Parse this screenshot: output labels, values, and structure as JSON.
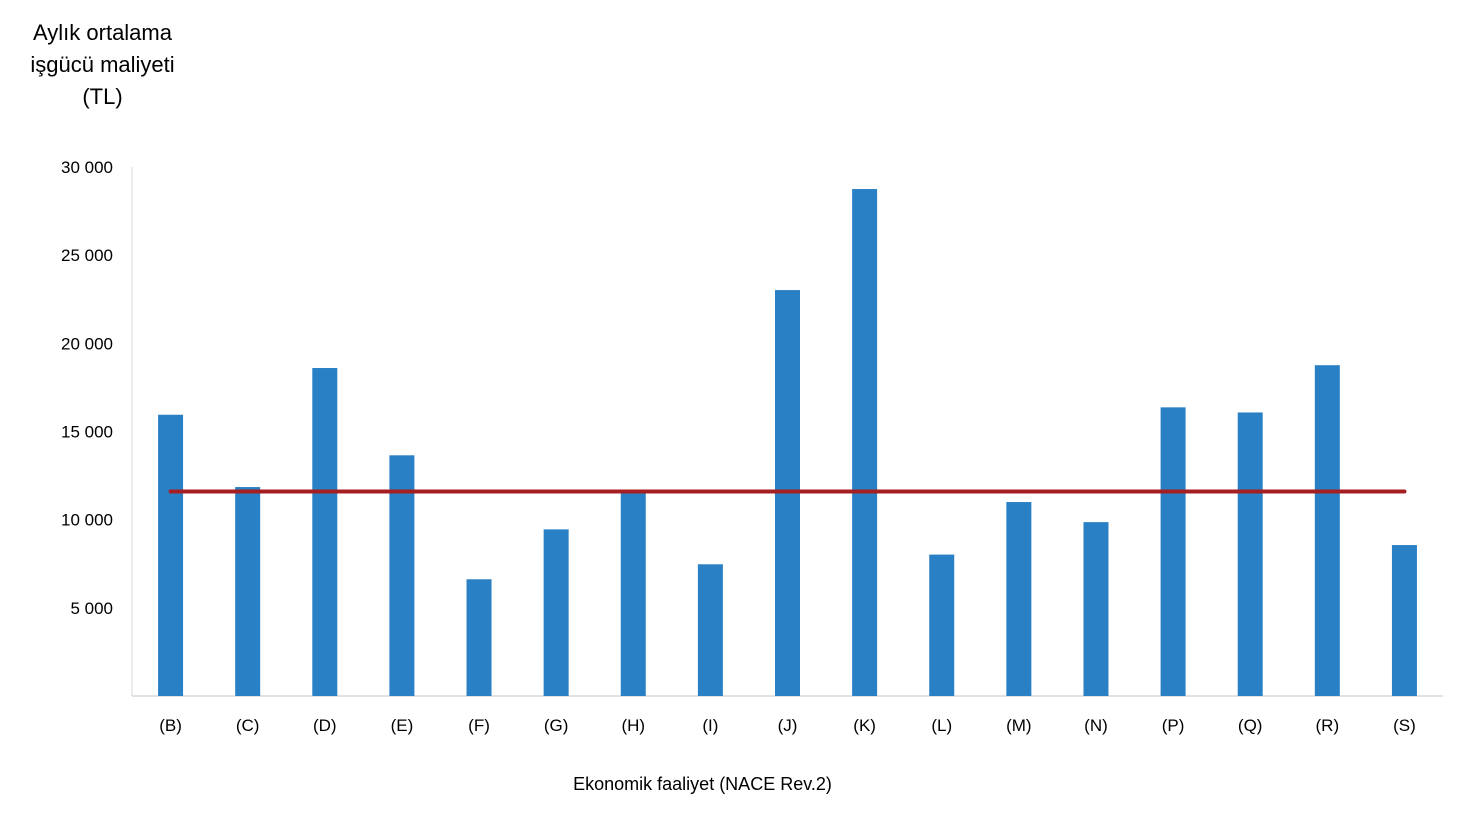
{
  "chart_data": {
    "type": "bar",
    "title": "",
    "ylabel_lines": [
      "Aylık ortalama",
      "işgücü maliyeti",
      "(TL)"
    ],
    "xlabel": "Ekonomik faaliyet (NACE Rev.2)",
    "categories": [
      "(B)",
      "(C)",
      "(D)",
      "(E)",
      "(F)",
      "(G)",
      "(H)",
      "(I)",
      "(J)",
      "(K)",
      "(L)",
      "(M)",
      "(N)",
      "(P)",
      "(Q)",
      "(R)",
      "(S)"
    ],
    "series": [
      {
        "type": "bar",
        "color": "#2a80c5",
        "values": [
          15950,
          11850,
          18600,
          13650,
          6620,
          9450,
          11600,
          7470,
          23020,
          28750,
          8020,
          11000,
          9860,
          16370,
          16080,
          18760,
          8560
        ]
      },
      {
        "type": "line",
        "color": "#a41e22",
        "values": [
          11600,
          11600,
          11600,
          11600,
          11600,
          11600,
          11600,
          11600,
          11600,
          11600,
          11600,
          11600,
          11600,
          11600,
          11600,
          11600,
          11600
        ]
      }
    ],
    "ylim": [
      0,
      30000
    ],
    "yticks": [
      5000,
      10000,
      15000,
      20000,
      25000,
      30000
    ],
    "ytick_labels": [
      "5 000",
      "10 000",
      "15 000",
      "20 000",
      "25 000",
      "30 000"
    ],
    "grid": false,
    "legend": "none"
  }
}
